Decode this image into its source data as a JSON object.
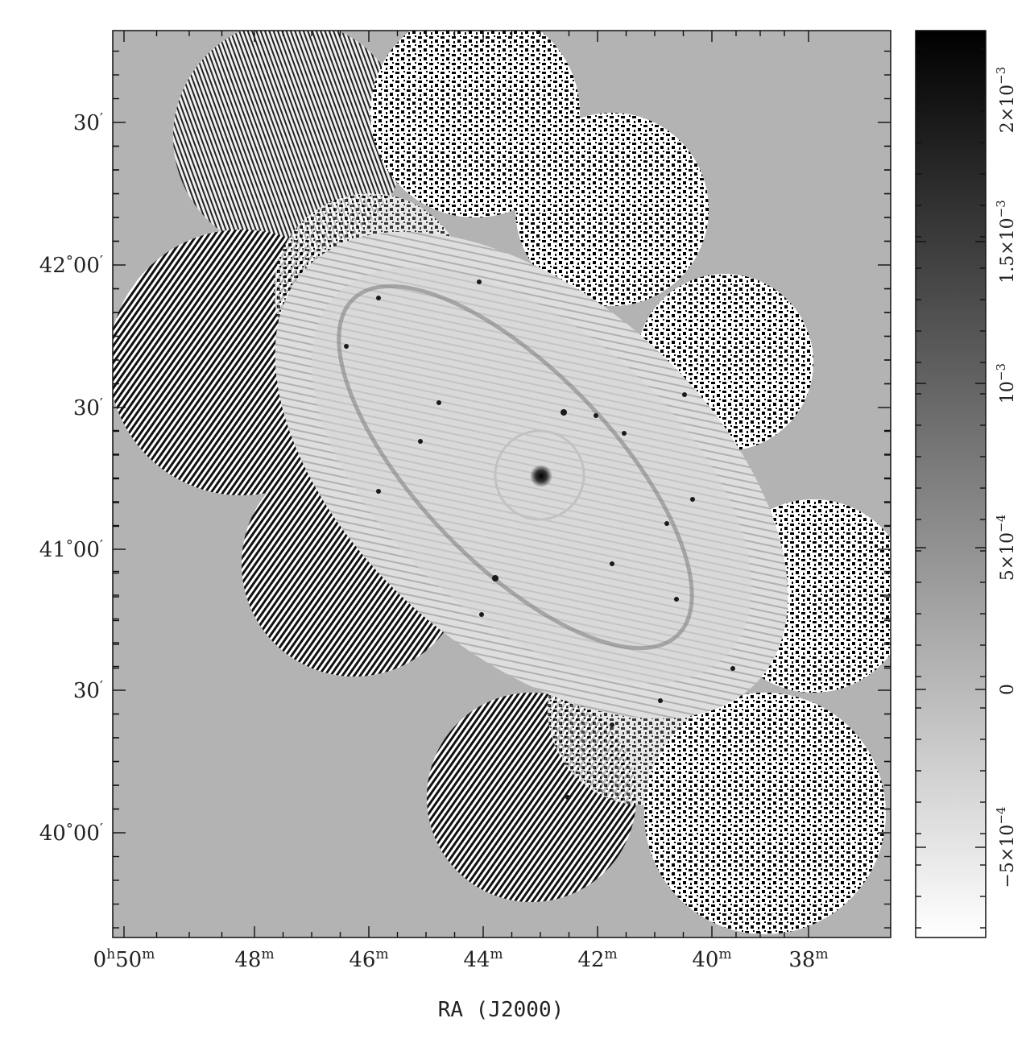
{
  "figure": {
    "xlabel": "RA (J2000)",
    "x_ticks": [
      {
        "h": "0",
        "m": "50",
        "show_h": true
      },
      {
        "h": "",
        "m": "48",
        "show_h": false
      },
      {
        "h": "",
        "m": "46",
        "show_h": false
      },
      {
        "h": "",
        "m": "44",
        "show_h": false
      },
      {
        "h": "",
        "m": "42",
        "show_h": false
      },
      {
        "h": "",
        "m": "40",
        "show_h": false
      },
      {
        "h": "",
        "m": "38",
        "show_h": false
      }
    ],
    "y_ticks": [
      {
        "deg": "",
        "min": "30"
      },
      {
        "deg": "42",
        "min": "00"
      },
      {
        "deg": "",
        "min": "30"
      },
      {
        "deg": "41",
        "min": "00"
      },
      {
        "deg": "",
        "min": "30"
      },
      {
        "deg": "40",
        "min": "00"
      }
    ],
    "colorbar": {
      "labels": [
        {
          "mant": "2×10",
          "exp": "−3"
        },
        {
          "mant": "1.5×10",
          "exp": "−3"
        },
        {
          "mant": "10",
          "exp": "−3"
        },
        {
          "mant": "5×10",
          "exp": "−4"
        },
        {
          "mant": "0",
          "exp": ""
        },
        {
          "mant": "−5×10",
          "exp": "−4"
        }
      ],
      "range": [
        "-8e-4",
        "2.4e-3"
      ],
      "gradient": [
        "#ffffff",
        "#000000"
      ]
    },
    "colors": {
      "background": "#b3b3b3",
      "frame": "#111111"
    }
  }
}
